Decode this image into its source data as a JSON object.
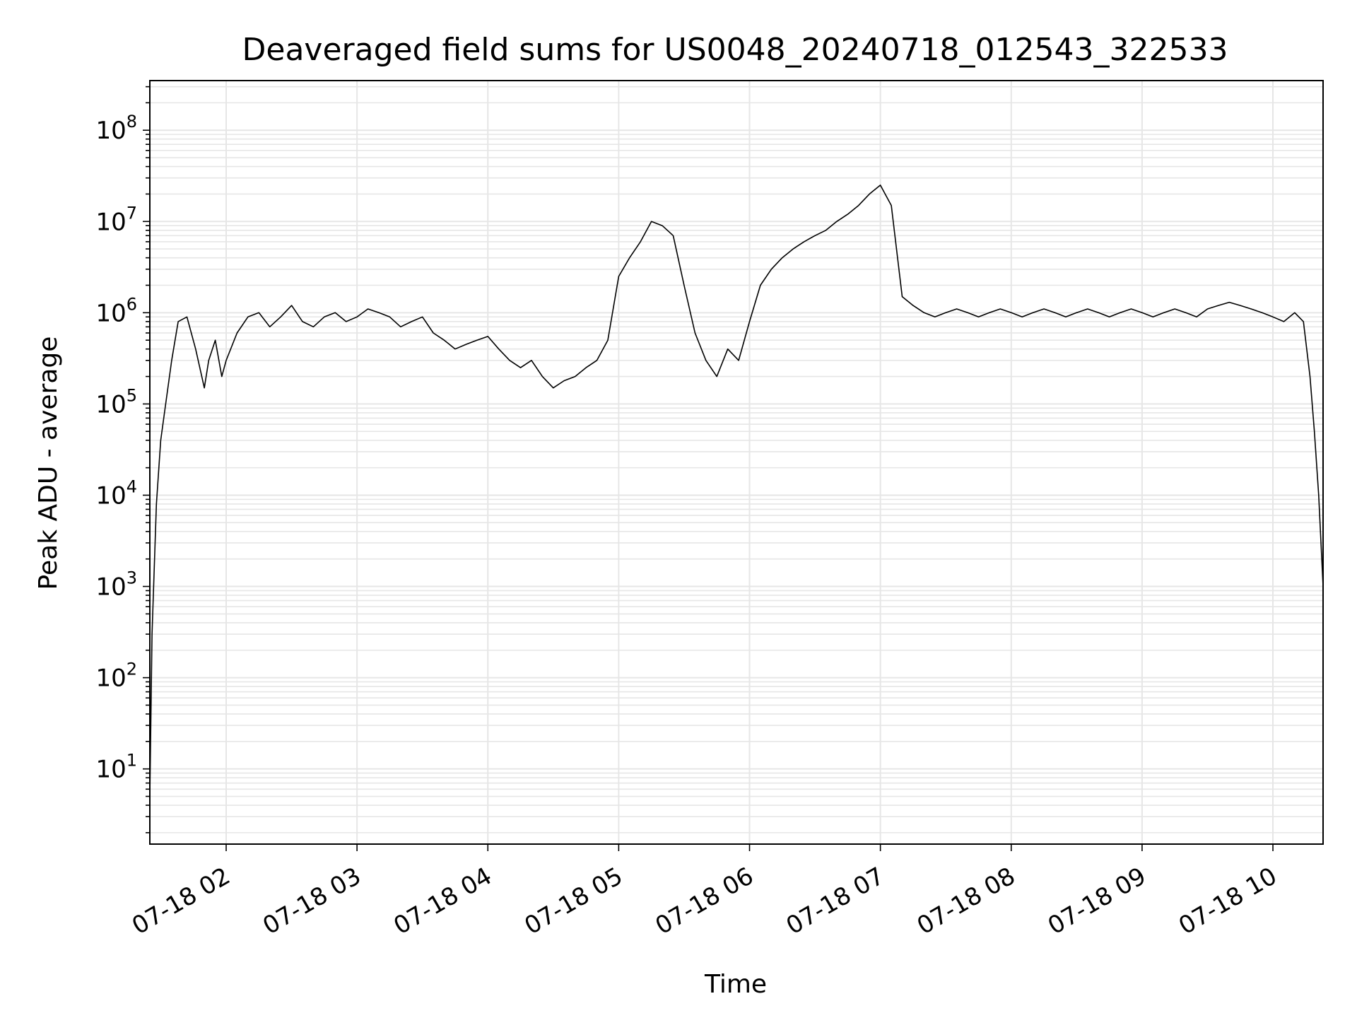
{
  "chart_data": {
    "type": "line",
    "title": "Deaveraged field sums for US0048_20240718_012543_322533",
    "xlabel": "Time",
    "ylabel": "Peak ADU - average",
    "y_scale": "log",
    "ylim": [
      1.5,
      350000000.0
    ],
    "xlim": [
      "2024-07-18 01:25",
      "2024-07-18 10:23"
    ],
    "x_ticks": [
      "07-18 02",
      "07-18 03",
      "07-18 04",
      "07-18 05",
      "07-18 06",
      "07-18 07",
      "07-18 08",
      "07-18 09",
      "07-18 10"
    ],
    "y_ticks": [
      {
        "base": "10",
        "exp": "1"
      },
      {
        "base": "10",
        "exp": "2"
      },
      {
        "base": "10",
        "exp": "3"
      },
      {
        "base": "10",
        "exp": "4"
      },
      {
        "base": "10",
        "exp": "5"
      },
      {
        "base": "10",
        "exp": "6"
      },
      {
        "base": "10",
        "exp": "7"
      },
      {
        "base": "10",
        "exp": "8"
      }
    ],
    "grid": true,
    "line_color": "#000000",
    "grid_color": "#e6e6e6",
    "series": [
      {
        "x": [
          "01:25",
          "01:26",
          "01:28",
          "01:30",
          "01:32",
          "01:35",
          "01:38",
          "01:42",
          "01:46",
          "01:50",
          "01:52",
          "01:55",
          "01:58",
          "02:00",
          "02:05",
          "02:10",
          "02:15",
          "02:20",
          "02:25",
          "02:30",
          "02:35",
          "02:40",
          "02:45",
          "02:50",
          "02:55",
          "03:00",
          "03:05",
          "03:10",
          "03:15",
          "03:20",
          "03:25",
          "03:30",
          "03:35",
          "03:40",
          "03:45",
          "03:50",
          "03:55",
          "04:00",
          "04:05",
          "04:10",
          "04:15",
          "04:20",
          "04:25",
          "04:30",
          "04:35",
          "04:40",
          "04:45",
          "04:50",
          "04:55",
          "05:00",
          "05:05",
          "05:10",
          "05:15",
          "05:20",
          "05:25",
          "05:30",
          "05:35",
          "05:40",
          "05:45",
          "05:50",
          "05:55",
          "06:00",
          "06:05",
          "06:10",
          "06:15",
          "06:20",
          "06:25",
          "06:30",
          "06:35",
          "06:40",
          "06:45",
          "06:50",
          "06:55",
          "07:00",
          "07:05",
          "07:10",
          "07:15",
          "07:20",
          "07:25",
          "07:30",
          "07:35",
          "07:40",
          "07:45",
          "07:50",
          "07:55",
          "08:00",
          "08:05",
          "08:10",
          "08:15",
          "08:20",
          "08:25",
          "08:30",
          "08:35",
          "08:40",
          "08:45",
          "08:50",
          "08:55",
          "09:00",
          "09:05",
          "09:10",
          "09:15",
          "09:20",
          "09:25",
          "09:30",
          "09:35",
          "09:40",
          "09:45",
          "09:50",
          "09:55",
          "10:00",
          "10:05",
          "10:10",
          "10:14",
          "10:17",
          "10:19",
          "10:21",
          "10:23"
        ],
        "y": [
          5,
          300,
          8000,
          40000,
          90000,
          300000,
          800000,
          900000,
          400000,
          150000,
          300000,
          500000,
          200000,
          300000,
          600000,
          900000,
          1000000,
          700000,
          900000,
          1200000,
          800000,
          700000,
          900000,
          1000000,
          800000,
          900000,
          1100000,
          1000000,
          900000,
          700000,
          800000,
          900000,
          600000,
          500000,
          400000,
          450000,
          500000,
          550000,
          400000,
          300000,
          250000,
          300000,
          200000,
          150000,
          180000,
          200000,
          250000,
          300000,
          500000,
          2500000,
          4000000,
          6000000,
          10000000,
          9000000,
          7000000,
          2000000,
          600000,
          300000,
          200000,
          400000,
          300000,
          800000,
          2000000,
          3000000,
          4000000,
          5000000,
          6000000,
          7000000,
          8000000,
          10000000,
          12000000,
          15000000,
          20000000,
          25000000,
          15000000,
          1500000,
          1200000,
          1000000,
          900000,
          1000000,
          1100000,
          1000000,
          900000,
          1000000,
          1100000,
          1000000,
          900000,
          1000000,
          1100000,
          1000000,
          900000,
          1000000,
          1100000,
          1000000,
          900000,
          1000000,
          1100000,
          1000000,
          900000,
          1000000,
          1100000,
          1000000,
          900000,
          1100000,
          1200000,
          1300000,
          1200000,
          1100000,
          1000000,
          900000,
          800000,
          1000000,
          800000,
          200000,
          50000,
          10000,
          1000
        ]
      }
    ]
  }
}
